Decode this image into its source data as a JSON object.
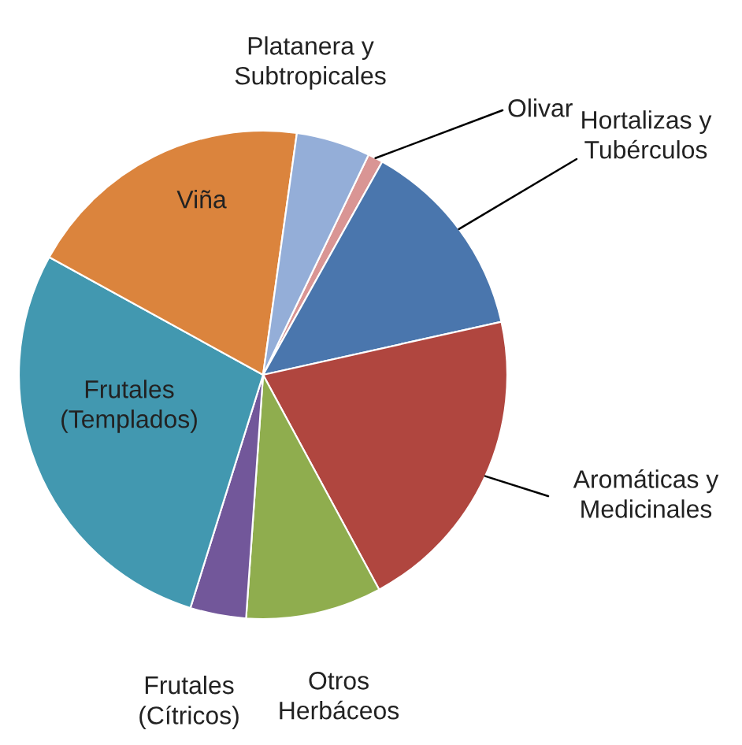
{
  "chart_data": {
    "type": "pie",
    "categories": [
      "Olivar",
      "Hortalizas y\nTubérculos",
      "Aromáticas y\nMedicinales",
      "Otros\nHerbáceos",
      "Frutales\n(Cítricos)",
      "Frutales\n(Templados)",
      "Viña",
      "Platanera y\nSubtropicales"
    ],
    "values": [
      1.0,
      13.4,
      20.6,
      9.0,
      3.7,
      28.2,
      19.2,
      4.9
    ],
    "colors": [
      "#d99594",
      "#4a76ad",
      "#b0463f",
      "#8fad4e",
      "#72579a",
      "#4298b0",
      "#db843d",
      "#94aed8"
    ],
    "legend": false
  }
}
